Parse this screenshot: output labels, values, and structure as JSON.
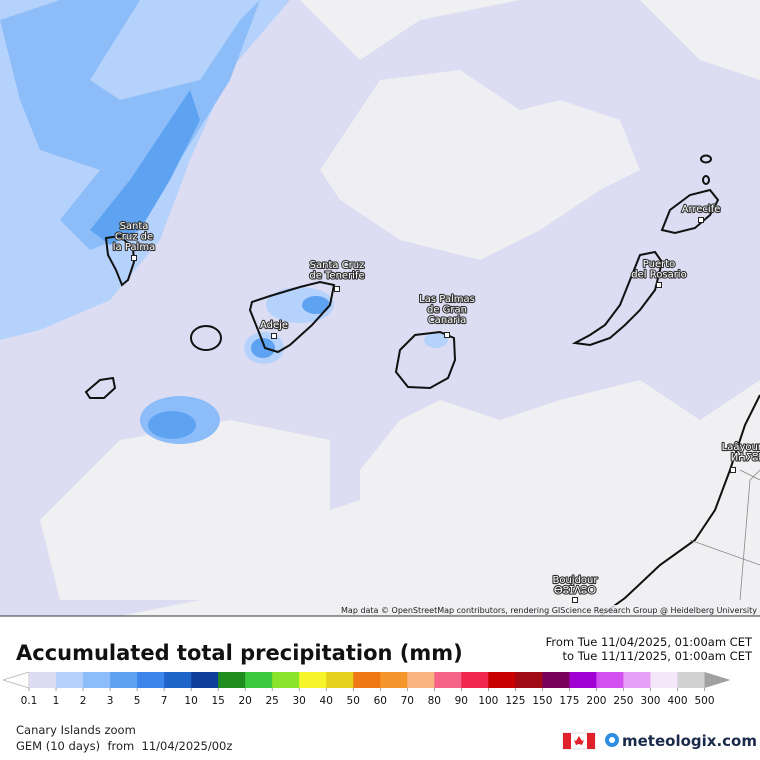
{
  "map": {
    "cities": [
      {
        "lines": [
          "Santa",
          "Cruz de",
          "la Palma"
        ]
      },
      {
        "lines": [
          "Santa Cruz",
          "de Tenerife"
        ]
      },
      {
        "lines": [
          "Adeje"
        ]
      },
      {
        "lines": [
          "Las Palmas",
          "de Gran",
          "Canaria"
        ]
      },
      {
        "lines": [
          "Puerto",
          "del Rosario"
        ]
      },
      {
        "lines": [
          "Arrecife"
        ]
      },
      {
        "lines": [
          "Laâyoune",
          "ⵍⵄⵢⵓⵏ"
        ]
      },
      {
        "lines": [
          "Boujdour",
          "ⴱⵓⵊⴷⵓⵔ"
        ]
      }
    ],
    "attribution": "Map data © OpenStreetMap contributors, rendering GIScience Research Group @ Heidelberg University"
  },
  "legend": {
    "title": "Accumulated total precipitation (mm)",
    "from": "From Tue 11/04/2025, 01:00am CET",
    "to": "to Tue 11/11/2025, 01:00am CET",
    "ticks": [
      0.1,
      1,
      2,
      3,
      5,
      7,
      10,
      15,
      20,
      25,
      30,
      40,
      50,
      60,
      70,
      80,
      90,
      100,
      125,
      150,
      175,
      200,
      250,
      300,
      400,
      500
    ],
    "colors": [
      "#dcdcf3",
      "#b4d2fb",
      "#8cbdf8",
      "#5ea2f2",
      "#3c86eb",
      "#1f64c9",
      "#0d3f9a",
      "#1e8c1e",
      "#3cc83c",
      "#8be32b",
      "#f5f52a",
      "#e6d21e",
      "#f07814",
      "#f5962d",
      "#f8b482",
      "#f56487",
      "#f02850",
      "#c80000",
      "#a00a14",
      "#78005a",
      "#a000d2",
      "#d250f0",
      "#e6a0f5",
      "#f5e6fa",
      "#d2d2d2"
    ],
    "under_color": "#ffffff",
    "over_color": "#a0a0a0"
  },
  "footer": {
    "region": "Canary Islands zoom",
    "model": "GEM (10 days)  from  11/04/2025/00z",
    "brand": "meteologix.com"
  }
}
